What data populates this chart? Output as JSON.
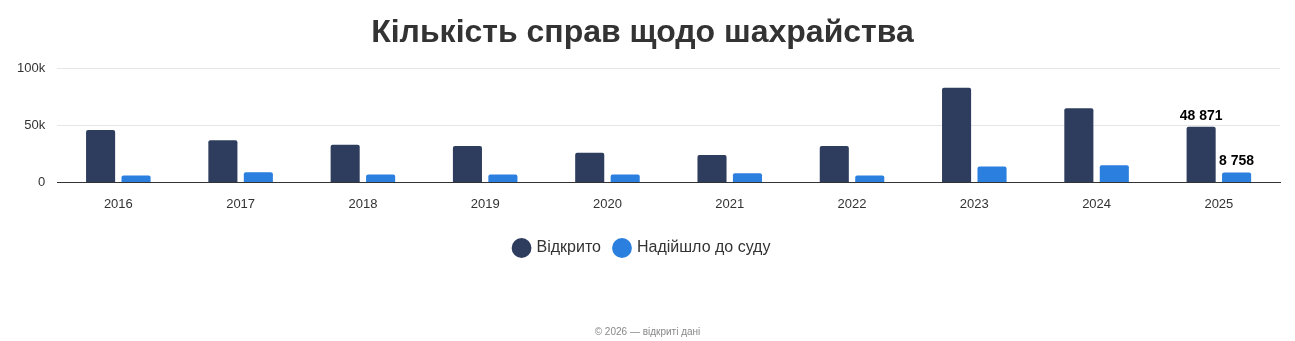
{
  "chart_data": {
    "type": "bar",
    "title": "Кількість справ щодо шахрайства",
    "categories": [
      "2016",
      "2017",
      "2018",
      "2019",
      "2020",
      "2021",
      "2022",
      "2023",
      "2024",
      "2025"
    ],
    "series": [
      {
        "name": "Відкрито",
        "color": "#2e3d5e",
        "values": [
          46000,
          37000,
          33000,
          32000,
          26000,
          24000,
          32000,
          83000,
          65000,
          48871
        ],
        "value_labels": [
          null,
          null,
          null,
          null,
          null,
          null,
          null,
          null,
          null,
          "48 871"
        ]
      },
      {
        "name": "Надійшло до суду",
        "color": "#2b7fde",
        "values": [
          6000,
          9000,
          7000,
          7000,
          7000,
          8000,
          6000,
          14000,
          15000,
          8758
        ],
        "value_labels": [
          null,
          null,
          null,
          null,
          null,
          null,
          null,
          null,
          null,
          "8 758"
        ]
      }
    ],
    "ylim": [
      0,
      100000
    ],
    "yticks": [
      {
        "value": 0,
        "label": "0"
      },
      {
        "value": 50000,
        "label": "50k"
      },
      {
        "value": 100000,
        "label": "100k"
      }
    ],
    "grid": "y",
    "legend": "bottom",
    "marker": "circle",
    "annotations": [
      "© 2026 — відкриті дані"
    ]
  }
}
